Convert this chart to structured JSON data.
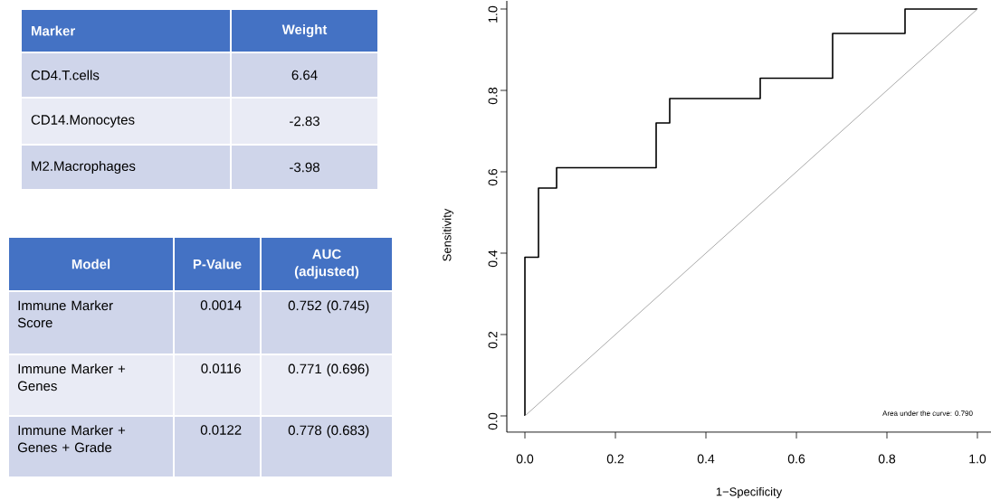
{
  "chart_data": [
    {
      "type": "other",
      "xlabel": "Marker",
      "ylabel": "Weight",
      "categories": [
        "CD4.T.cells",
        "CD14.Monocytes",
        "M2.Macrophages"
      ],
      "values": [
        6.64,
        -2.83,
        -3.98
      ],
      "colors": [
        "#cfd5ea",
        "#e9ebf5",
        "#cfd5ea"
      ],
      "data_labels": true
    },
    {
      "type": "other",
      "xlabel": "Model",
      "categories": [
        "Immune Marker Score",
        "Immune Marker + Genes",
        "Immune Marker + Genes + Grade"
      ],
      "series": [
        {
          "name": "P-Value",
          "values": [
            0.0014,
            0.0116,
            0.0122
          ],
          "colors": [
            "#cfd5ea",
            "#e9ebf5",
            "#cfd5ea"
          ]
        },
        {
          "name": "AUC (adjusted)",
          "values": [
            0.752,
            0.771,
            0.778
          ],
          "value_labels": [
            "0.752 (0.745)",
            "0.771 (0.696)",
            "0.778 (0.683)"
          ],
          "colors": [
            "#cfd5ea",
            "#e9ebf5",
            "#cfd5ea"
          ]
        }
      ],
      "data_labels": true
    },
    {
      "type": "line",
      "xlabel": "1−Specificity",
      "ylabel": "Sensitivity",
      "xlim": [
        -0.04,
        1.03
      ],
      "ylim": [
        -0.04,
        1.02
      ],
      "xticks": [
        {
          "value": 0,
          "label": "0.0"
        },
        0.2,
        0.4,
        0.6,
        0.8,
        {
          "value": 1,
          "label": "1.0"
        }
      ],
      "yticks": [
        {
          "value": 0,
          "label": "0.0"
        },
        0.2,
        0.4,
        0.6,
        0.8,
        {
          "value": 1,
          "label": "1.0"
        }
      ],
      "series": [
        {
          "type": "step",
          "color": "#000000",
          "x": [
            0,
            0,
            0.03,
            0.07,
            0.29,
            0.32,
            0.52,
            0.68,
            0.84,
            1
          ],
          "values": [
            0,
            0.39,
            0.56,
            0.61,
            0.72,
            0.78,
            0.83,
            0.94,
            1,
            1
          ]
        },
        {
          "type": "line",
          "color": "#a0a0a0",
          "x": [
            0,
            1
          ],
          "values": [
            0,
            1
          ]
        }
      ],
      "annotations": [
        "Area under the curve: 0.790"
      ]
    }
  ]
}
